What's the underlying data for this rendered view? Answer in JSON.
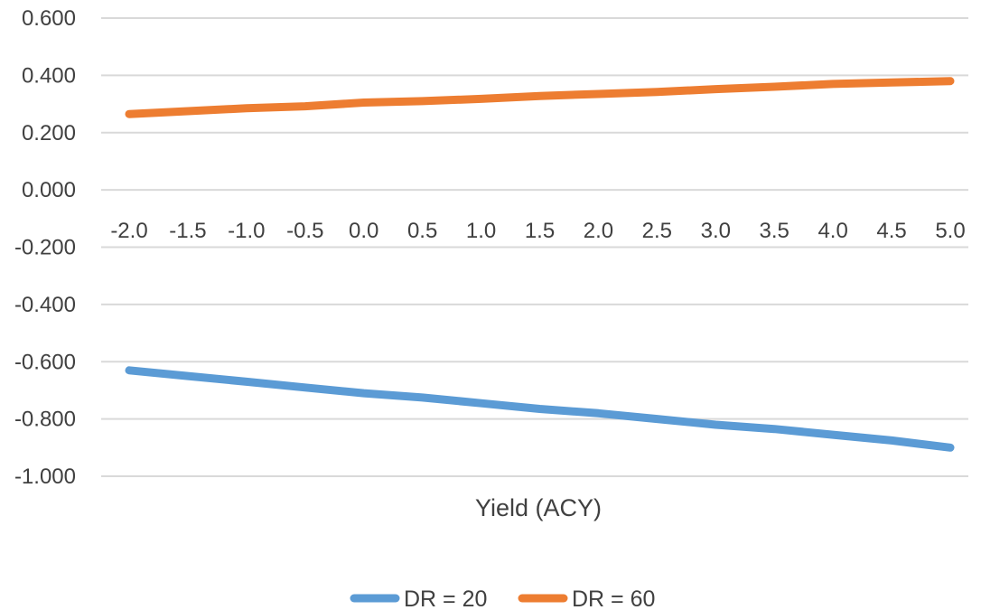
{
  "chart_data": {
    "type": "line",
    "title": "",
    "xlabel": "Yield (ACY)",
    "ylabel": "",
    "categories": [
      "-2.0",
      "-1.5",
      "-1.0",
      "-0.5",
      "0.0",
      "0.5",
      "1.0",
      "1.5",
      "2.0",
      "2.5",
      "3.0",
      "3.5",
      "4.0",
      "4.5",
      "5.0"
    ],
    "y_ticks": [
      "0.600",
      "0.400",
      "0.200",
      "0.000",
      "-0.200",
      "-0.400",
      "-0.600",
      "-0.800",
      "-1.000"
    ],
    "ylim": [
      -1.0,
      0.6
    ],
    "grid": true,
    "legend_position": "bottom",
    "series": [
      {
        "name": "DR = 20",
        "color": "#5B9BD5",
        "values": [
          -0.63,
          -0.65,
          -0.67,
          -0.69,
          -0.71,
          -0.725,
          -0.745,
          -0.765,
          -0.78,
          -0.8,
          -0.82,
          -0.835,
          -0.855,
          -0.875,
          -0.9
        ]
      },
      {
        "name": "DR = 60",
        "color": "#ED7D31",
        "values": [
          0.265,
          0.275,
          0.285,
          0.292,
          0.305,
          0.31,
          0.318,
          0.328,
          0.335,
          0.342,
          0.352,
          0.36,
          0.37,
          0.375,
          0.38
        ]
      }
    ]
  }
}
